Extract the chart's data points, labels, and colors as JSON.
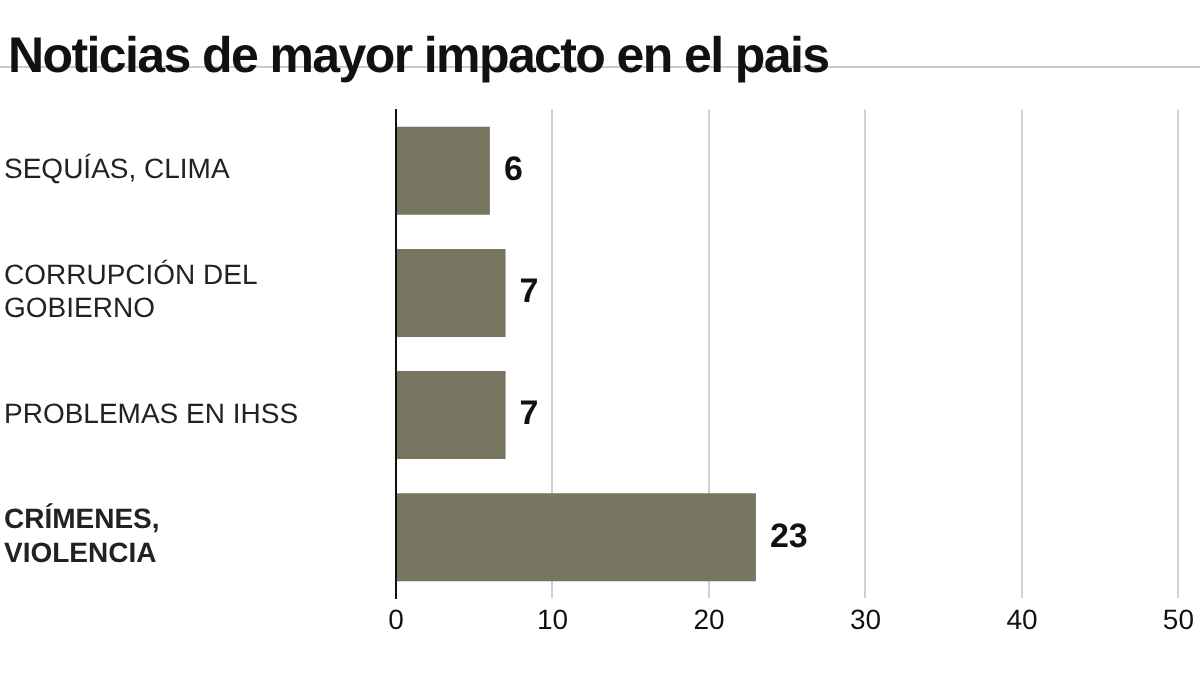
{
  "chart_data": {
    "type": "bar",
    "orientation": "horizontal",
    "title": "Noticias de mayor impacto en el pais",
    "categories": [
      "SEQUÍAS, CLIMA",
      "CORRUPCIÓN DEL GOBIERNO",
      "PROBLEMAS EN IHSS",
      "CRÍMENES, VIOLENCIA"
    ],
    "values": [
      6,
      7,
      7,
      23
    ],
    "color": "#77745f",
    "xlim": [
      0,
      50
    ],
    "xticks": [
      0,
      10,
      20,
      30,
      40,
      50
    ],
    "grid": "x",
    "data_labels": true,
    "legend": false
  }
}
